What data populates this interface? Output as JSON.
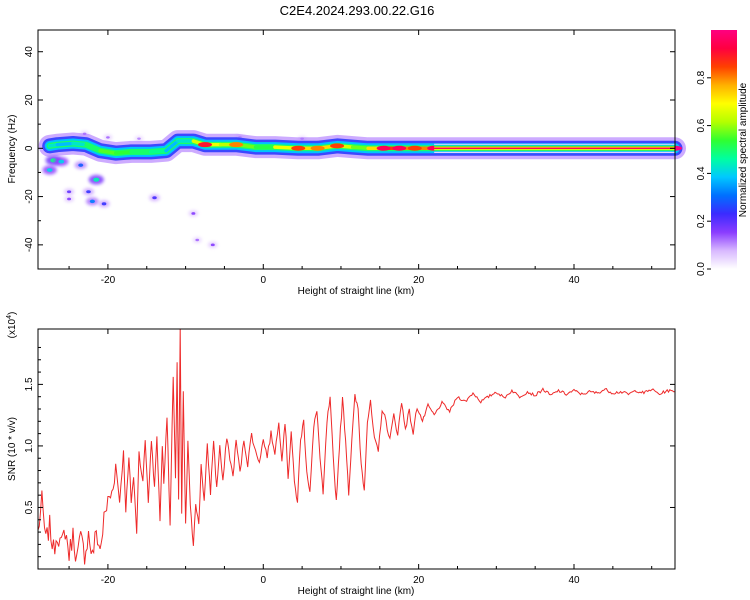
{
  "title": "C2E4.2024.293.00.22.G16",
  "chart_data": [
    {
      "type": "heatmap",
      "xlabel": "Height of straight line (km)",
      "ylabel": "Frequency (Hz)",
      "xlim": [
        -29,
        53
      ],
      "ylim": [
        -50,
        49
      ],
      "xticks": [
        -20,
        0,
        20,
        40
      ],
      "yticks": [
        -40,
        -20,
        0,
        20,
        40
      ],
      "xtick_labels": [
        "-20",
        "0",
        "20",
        "40"
      ],
      "ytick_labels": [
        "-40",
        "-20",
        "0",
        "20",
        "40"
      ],
      "colorbar": {
        "label": "Normalized spectral amplitude",
        "range": [
          0,
          1
        ],
        "ticks": [
          0.0,
          0.2,
          0.4,
          0.6,
          0.8
        ],
        "tick_labels": [
          "0.0",
          "0.2",
          "0.4",
          "0.6",
          "0.8"
        ],
        "colormap": [
          "#ffffff",
          "#d8b8ff",
          "#8a3cff",
          "#3b2bff",
          "#0070ff",
          "#00c8ff",
          "#00ffa0",
          "#30ff30",
          "#b4ff00",
          "#ffff00",
          "#ffb000",
          "#ff4000",
          "#ff0040",
          "#ff0080"
        ]
      },
      "main_band": [
        {
          "x": -27.5,
          "y": 1.0,
          "a": 0.45
        },
        {
          "x": -26.5,
          "y": 1.5,
          "a": 0.4
        },
        {
          "x": -24.5,
          "y": 2.0,
          "a": 0.35
        },
        {
          "x": -22.8,
          "y": 1.5,
          "a": 0.5
        },
        {
          "x": -21.0,
          "y": -1.0,
          "a": 0.5
        },
        {
          "x": -19.0,
          "y": -2.0,
          "a": 0.62
        },
        {
          "x": -17.0,
          "y": -1.5,
          "a": 0.45
        },
        {
          "x": -14.5,
          "y": -1.5,
          "a": 0.55
        },
        {
          "x": -12.5,
          "y": -1.0,
          "a": 0.4
        },
        {
          "x": -11.0,
          "y": 3.0,
          "a": 0.35
        },
        {
          "x": -9.0,
          "y": 3.0,
          "a": 0.5
        },
        {
          "x": -7.5,
          "y": 1.5,
          "a": 0.8
        },
        {
          "x": -5.5,
          "y": 1.5,
          "a": 0.55
        },
        {
          "x": -3.5,
          "y": 1.5,
          "a": 0.7
        },
        {
          "x": -1.0,
          "y": 0.5,
          "a": 0.45
        },
        {
          "x": 1.5,
          "y": 0.5,
          "a": 0.6
        },
        {
          "x": 4.5,
          "y": 0.0,
          "a": 0.75
        },
        {
          "x": 7.0,
          "y": 0.0,
          "a": 0.7
        },
        {
          "x": 9.5,
          "y": 1.0,
          "a": 0.75
        },
        {
          "x": 11.5,
          "y": 0.5,
          "a": 0.55
        },
        {
          "x": 13.5,
          "y": 0.0,
          "a": 0.6
        },
        {
          "x": 15.5,
          "y": 0.0,
          "a": 0.85
        },
        {
          "x": 17.5,
          "y": 0.0,
          "a": 0.85
        },
        {
          "x": 19.5,
          "y": 0.0,
          "a": 0.75
        },
        {
          "x": 22.0,
          "y": 0.0,
          "a": 0.85
        },
        {
          "x": 53.0,
          "y": 0.0,
          "a": 1.0
        }
      ],
      "blobs": [
        {
          "x": -27.0,
          "y": -5.0,
          "a": 0.3
        },
        {
          "x": -26.0,
          "y": -5.5,
          "a": 0.25
        },
        {
          "x": -27.5,
          "y": -9.0,
          "a": 0.25
        },
        {
          "x": -23.5,
          "y": -7.0,
          "a": 0.18
        },
        {
          "x": -21.5,
          "y": -13.0,
          "a": 0.28
        },
        {
          "x": -22.5,
          "y": -18.0,
          "a": 0.15
        },
        {
          "x": -25.0,
          "y": -18.0,
          "a": 0.12
        },
        {
          "x": -25.0,
          "y": -21.0,
          "a": 0.1
        },
        {
          "x": -22.0,
          "y": -22.0,
          "a": 0.2
        },
        {
          "x": -20.5,
          "y": -23.0,
          "a": 0.15
        },
        {
          "x": -14.0,
          "y": -20.5,
          "a": 0.14
        },
        {
          "x": -9.0,
          "y": -27.0,
          "a": 0.1
        },
        {
          "x": -6.5,
          "y": -40.0,
          "a": 0.1
        },
        {
          "x": -8.5,
          "y": -38.0,
          "a": 0.08
        },
        {
          "x": -23.0,
          "y": 6.0,
          "a": 0.08
        },
        {
          "x": -20.0,
          "y": 4.5,
          "a": 0.08
        },
        {
          "x": -16.0,
          "y": 4.0,
          "a": 0.07
        },
        {
          "x": -3.0,
          "y": 4.5,
          "a": 0.07
        },
        {
          "x": 5.0,
          "y": 4.0,
          "a": 0.07
        }
      ]
    },
    {
      "type": "line",
      "xlabel": "Height of straight line (km)",
      "ylabel": "SNR (10 * v/v)",
      "y_multiplier": "(x10",
      "y_multiplier_exponent": "4",
      "y_multiplier_close": ")",
      "xlim": [
        -29,
        53
      ],
      "ylim": [
        0,
        1.95
      ],
      "xticks": [
        -20,
        0,
        20,
        40
      ],
      "yticks": [
        0.5,
        1.0,
        1.5
      ],
      "xtick_labels": [
        "-20",
        "0",
        "20",
        "40"
      ],
      "ytick_labels": [
        "0.5",
        "1.0",
        "1.5"
      ],
      "line_color": "#ee2a2a",
      "series": [
        {
          "values": [
            [
              -29.0,
              0.3
            ],
            [
              -28.5,
              0.55
            ],
            [
              -28.0,
              0.22
            ],
            [
              -27.5,
              0.35
            ],
            [
              -27.0,
              0.15
            ],
            [
              -26.5,
              0.3
            ],
            [
              -26.0,
              0.18
            ],
            [
              -25.5,
              0.32
            ],
            [
              -25.0,
              0.12
            ],
            [
              -24.5,
              0.28
            ],
            [
              -24.0,
              0.08
            ],
            [
              -23.5,
              0.25
            ],
            [
              -23.0,
              0.12
            ],
            [
              -22.5,
              0.28
            ],
            [
              -22.0,
              0.1
            ],
            [
              -21.5,
              0.3
            ],
            [
              -21.0,
              0.15
            ],
            [
              -20.5,
              0.4
            ],
            [
              -20.0,
              0.55
            ],
            [
              -19.5,
              0.62
            ],
            [
              -19.0,
              0.85
            ],
            [
              -18.5,
              0.55
            ],
            [
              -18.0,
              0.95
            ],
            [
              -17.7,
              0.48
            ],
            [
              -17.3,
              0.9
            ],
            [
              -17.0,
              0.55
            ],
            [
              -16.7,
              0.75
            ],
            [
              -16.3,
              0.3
            ],
            [
              -16.0,
              0.95
            ],
            [
              -15.5,
              0.7
            ],
            [
              -15.2,
              1.05
            ],
            [
              -14.8,
              0.55
            ],
            [
              -14.4,
              1.05
            ],
            [
              -14.0,
              0.65
            ],
            [
              -13.7,
              1.08
            ],
            [
              -13.3,
              0.4
            ],
            [
              -13.0,
              1.0
            ],
            [
              -12.8,
              0.7
            ],
            [
              -12.4,
              1.25
            ],
            [
              -12.0,
              0.35
            ],
            [
              -11.6,
              1.55
            ],
            [
              -11.3,
              0.75
            ],
            [
              -11.1,
              1.68
            ],
            [
              -10.9,
              0.55
            ],
            [
              -10.7,
              1.95
            ],
            [
              -10.5,
              0.45
            ],
            [
              -10.3,
              1.45
            ],
            [
              -10.0,
              0.35
            ],
            [
              -9.7,
              1.05
            ],
            [
              -9.4,
              0.5
            ],
            [
              -9.0,
              0.2
            ],
            [
              -8.7,
              0.55
            ],
            [
              -8.3,
              0.35
            ],
            [
              -8.0,
              0.85
            ],
            [
              -7.6,
              0.55
            ],
            [
              -7.2,
              1.0
            ],
            [
              -6.8,
              0.62
            ],
            [
              -6.4,
              1.05
            ],
            [
              -6.0,
              0.65
            ],
            [
              -5.6,
              1.0
            ],
            [
              -5.2,
              0.7
            ],
            [
              -4.7,
              1.08
            ],
            [
              -4.3,
              0.9
            ],
            [
              -3.9,
              0.75
            ],
            [
              -3.5,
              1.05
            ],
            [
              -3.0,
              0.78
            ],
            [
              -2.5,
              1.05
            ],
            [
              -2.0,
              0.85
            ],
            [
              -1.5,
              1.1
            ],
            [
              -1.0,
              0.95
            ],
            [
              -0.5,
              0.88
            ],
            [
              0.0,
              1.05
            ],
            [
              0.5,
              0.92
            ],
            [
              1.0,
              1.1
            ],
            [
              1.5,
              0.95
            ],
            [
              2.0,
              1.18
            ],
            [
              2.4,
              0.9
            ],
            [
              2.8,
              1.2
            ],
            [
              3.2,
              0.75
            ],
            [
              3.6,
              1.12
            ],
            [
              4.0,
              0.7
            ],
            [
              4.4,
              0.55
            ],
            [
              4.8,
              1.05
            ],
            [
              5.2,
              1.2
            ],
            [
              5.6,
              0.8
            ],
            [
              6.0,
              0.62
            ],
            [
              6.5,
              1.15
            ],
            [
              6.9,
              1.3
            ],
            [
              7.3,
              0.9
            ],
            [
              7.7,
              0.6
            ],
            [
              8.2,
              1.2
            ],
            [
              8.6,
              1.38
            ],
            [
              9.0,
              0.9
            ],
            [
              9.4,
              0.55
            ],
            [
              9.8,
              1.0
            ],
            [
              10.2,
              1.38
            ],
            [
              10.6,
              1.05
            ],
            [
              11.0,
              0.62
            ],
            [
              11.4,
              1.05
            ],
            [
              11.8,
              1.4
            ],
            [
              12.2,
              1.3
            ],
            [
              12.6,
              0.85
            ],
            [
              13.0,
              0.65
            ],
            [
              13.4,
              1.2
            ],
            [
              13.8,
              1.35
            ],
            [
              14.3,
              1.05
            ],
            [
              14.8,
              0.95
            ],
            [
              15.3,
              1.3
            ],
            [
              15.8,
              1.2
            ],
            [
              16.3,
              1.05
            ],
            [
              16.8,
              1.25
            ],
            [
              17.3,
              1.1
            ],
            [
              17.8,
              1.35
            ],
            [
              18.3,
              1.15
            ],
            [
              18.8,
              1.28
            ],
            [
              19.3,
              1.1
            ],
            [
              19.8,
              1.32
            ],
            [
              20.5,
              1.2
            ],
            [
              21.2,
              1.33
            ],
            [
              22.0,
              1.25
            ],
            [
              23.0,
              1.35
            ],
            [
              24.0,
              1.28
            ],
            [
              25.0,
              1.4
            ],
            [
              26.0,
              1.36
            ],
            [
              27.0,
              1.43
            ],
            [
              28.0,
              1.36
            ],
            [
              29.0,
              1.4
            ],
            [
              30.0,
              1.44
            ],
            [
              31.0,
              1.39
            ],
            [
              32.0,
              1.45
            ],
            [
              33.0,
              1.4
            ],
            [
              34.0,
              1.44
            ],
            [
              35.0,
              1.41
            ],
            [
              36.0,
              1.46
            ],
            [
              37.0,
              1.41
            ],
            [
              38.0,
              1.45
            ],
            [
              39.0,
              1.42
            ],
            [
              40.0,
              1.45
            ],
            [
              41.0,
              1.42
            ],
            [
              42.0,
              1.44
            ],
            [
              43.0,
              1.43
            ],
            [
              44.0,
              1.46
            ],
            [
              45.0,
              1.43
            ],
            [
              46.0,
              1.44
            ],
            [
              47.0,
              1.42
            ],
            [
              48.0,
              1.45
            ],
            [
              49.0,
              1.43
            ],
            [
              50.0,
              1.46
            ],
            [
              51.0,
              1.42
            ],
            [
              52.0,
              1.45
            ],
            [
              53.0,
              1.44
            ]
          ]
        }
      ]
    }
  ]
}
